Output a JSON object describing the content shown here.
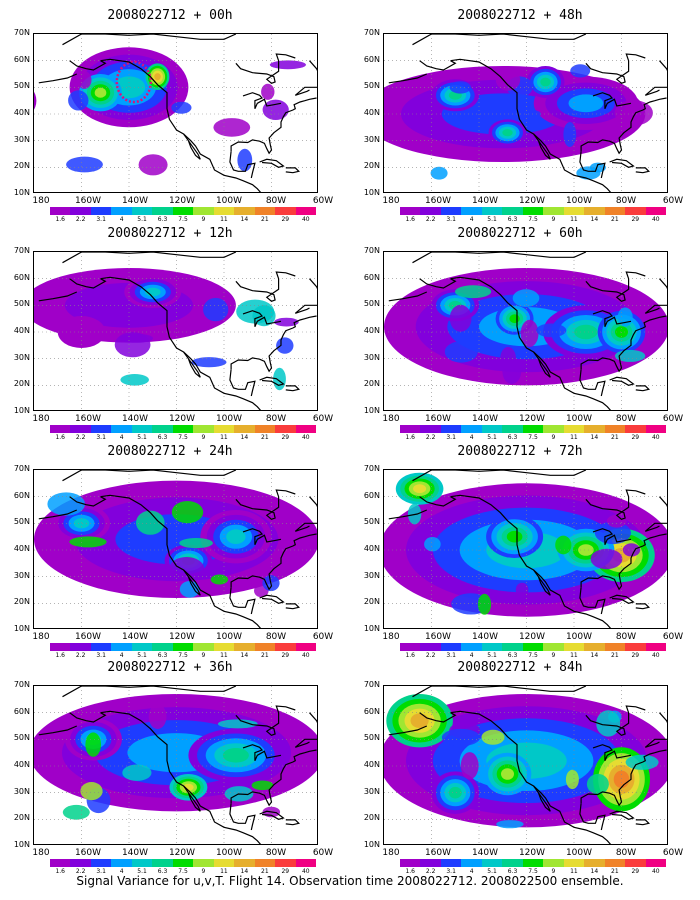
{
  "panels": [
    {
      "title": "2008022712 + 00h"
    },
    {
      "title": "2008022712 + 48h"
    },
    {
      "title": "2008022712 + 12h"
    },
    {
      "title": "2008022712 + 60h"
    },
    {
      "title": "2008022712 + 24h"
    },
    {
      "title": "2008022712 + 72h"
    },
    {
      "title": "2008022712 + 36h"
    },
    {
      "title": "2008022712 + 84h"
    }
  ],
  "latitude_labels": [
    "70N",
    "60N",
    "50N",
    "40N",
    "30N",
    "20N",
    "10N"
  ],
  "longitude_labels": [
    "180",
    "160W",
    "140W",
    "120W",
    "100W",
    "80W",
    "60W"
  ],
  "colorbar": {
    "labels": [
      "1.6",
      "2.2",
      "3.1",
      "4",
      "5.1",
      "6.3",
      "7.5",
      "9",
      "11",
      "14",
      "21",
      "29",
      "40"
    ],
    "colors": [
      "#a000c8",
      "#8200dc",
      "#1e3cff",
      "#00a0ff",
      "#00c8c8",
      "#00d28c",
      "#00dc00",
      "#a0e632",
      "#e6dc32",
      "#e6af2d",
      "#f08228",
      "#fa3c3c",
      "#f00082"
    ]
  },
  "caption": "Signal Variance for u,v,T. Flight 14. Observation time 2008022712. 2008022500 ensemble."
}
